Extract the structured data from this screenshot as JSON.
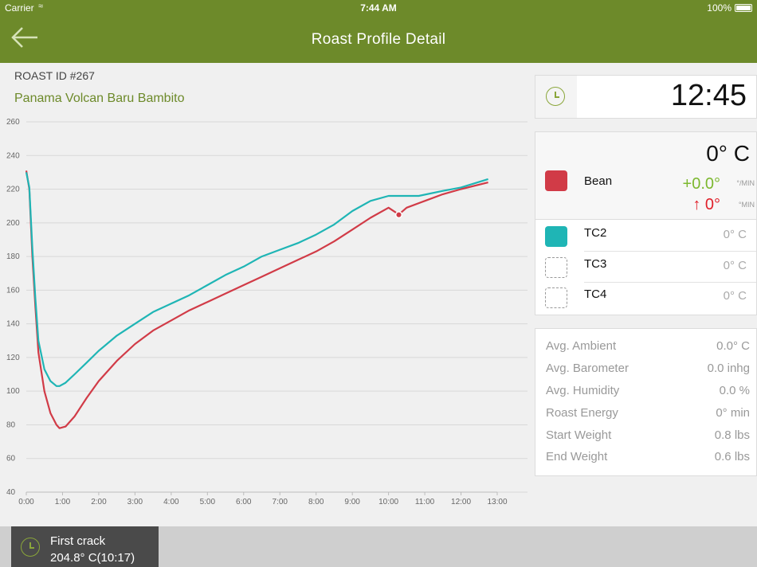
{
  "status_bar": {
    "carrier": "Carrier",
    "time": "7:44 AM",
    "battery": "100%"
  },
  "nav": {
    "title": "Roast  Profile Detail",
    "back_icon": "back-arrow-icon"
  },
  "roast": {
    "id_label": "ROAST ID #267",
    "name": "Panama Volcan Baru Bambito"
  },
  "timer": {
    "icon": "clock-icon",
    "value": "12:45"
  },
  "temperatures": {
    "main": "0° C",
    "bean": {
      "label": "Bean",
      "color": "#d13b47",
      "ror": "+0.0°",
      "ror_unit": "°/MIN",
      "delta": "↑ 0°",
      "delta_unit": "°MIN"
    },
    "channels": [
      {
        "label": "TC2",
        "value": "0° C",
        "color": "#1fb5b5"
      },
      {
        "label": "TC3",
        "value": "0° C",
        "color": ""
      },
      {
        "label": "TC4",
        "value": "0° C",
        "color": ""
      }
    ]
  },
  "stats": [
    {
      "label": "Avg. Ambient",
      "value": "0.0° C"
    },
    {
      "label": "Avg. Barometer",
      "value": "0.0 inhg"
    },
    {
      "label": "Avg. Humidity",
      "value": "0.0 %"
    },
    {
      "label": "Roast Energy",
      "value": "0° min"
    },
    {
      "label": "Start Weight",
      "value": "0.8 lbs"
    },
    {
      "label": "End Weight",
      "value": "0.6 lbs"
    }
  ],
  "event": {
    "title": "First crack",
    "value": "204.8° C(10:17)"
  },
  "colors": {
    "brand": "#6d8a2a",
    "bean": "#d13b47",
    "tc2": "#1fb5b5"
  },
  "chart_data": {
    "type": "line",
    "x_ticks": [
      "0:00",
      "1:00",
      "2:00",
      "3:00",
      "4:00",
      "5:00",
      "6:00",
      "7:00",
      "8:00",
      "9:00",
      "10:00",
      "11:00",
      "12:00",
      "13:00"
    ],
    "y_ticks": [
      40,
      60,
      80,
      100,
      120,
      140,
      160,
      180,
      200,
      220,
      240,
      260
    ],
    "xlim": [
      0,
      780
    ],
    "ylim": [
      40,
      260
    ],
    "grid": true,
    "series": [
      {
        "name": "Bean",
        "color": "#d13b47",
        "points": [
          [
            0,
            231
          ],
          [
            5,
            220
          ],
          [
            10,
            180
          ],
          [
            15,
            150
          ],
          [
            20,
            123
          ],
          [
            30,
            100
          ],
          [
            40,
            87
          ],
          [
            50,
            80
          ],
          [
            55,
            78
          ],
          [
            65,
            79
          ],
          [
            80,
            85
          ],
          [
            100,
            96
          ],
          [
            120,
            106
          ],
          [
            150,
            118
          ],
          [
            180,
            128
          ],
          [
            210,
            136
          ],
          [
            240,
            142
          ],
          [
            270,
            148
          ],
          [
            300,
            153
          ],
          [
            330,
            158
          ],
          [
            360,
            163
          ],
          [
            390,
            168
          ],
          [
            420,
            173
          ],
          [
            450,
            178
          ],
          [
            480,
            183
          ],
          [
            510,
            189
          ],
          [
            540,
            196
          ],
          [
            570,
            203
          ],
          [
            600,
            209
          ],
          [
            617,
            205
          ],
          [
            630,
            209
          ],
          [
            660,
            213
          ],
          [
            690,
            217
          ],
          [
            720,
            220
          ],
          [
            765,
            224
          ]
        ]
      },
      {
        "name": "TC2",
        "color": "#1fb5b5",
        "points": [
          [
            0,
            230
          ],
          [
            5,
            221
          ],
          [
            10,
            185
          ],
          [
            15,
            155
          ],
          [
            20,
            130
          ],
          [
            30,
            113
          ],
          [
            40,
            106
          ],
          [
            50,
            103
          ],
          [
            55,
            103
          ],
          [
            65,
            105
          ],
          [
            80,
            110
          ],
          [
            100,
            117
          ],
          [
            120,
            124
          ],
          [
            150,
            133
          ],
          [
            180,
            140
          ],
          [
            210,
            147
          ],
          [
            240,
            152
          ],
          [
            270,
            157
          ],
          [
            300,
            163
          ],
          [
            330,
            169
          ],
          [
            360,
            174
          ],
          [
            390,
            180
          ],
          [
            420,
            184
          ],
          [
            450,
            188
          ],
          [
            480,
            193
          ],
          [
            510,
            199
          ],
          [
            540,
            207
          ],
          [
            570,
            213
          ],
          [
            600,
            216
          ],
          [
            620,
            216
          ],
          [
            650,
            216
          ],
          [
            690,
            219
          ],
          [
            720,
            221
          ],
          [
            765,
            226
          ]
        ]
      }
    ],
    "annotations": [
      {
        "label": "First crack",
        "x": 617,
        "y": 204.8
      }
    ]
  }
}
